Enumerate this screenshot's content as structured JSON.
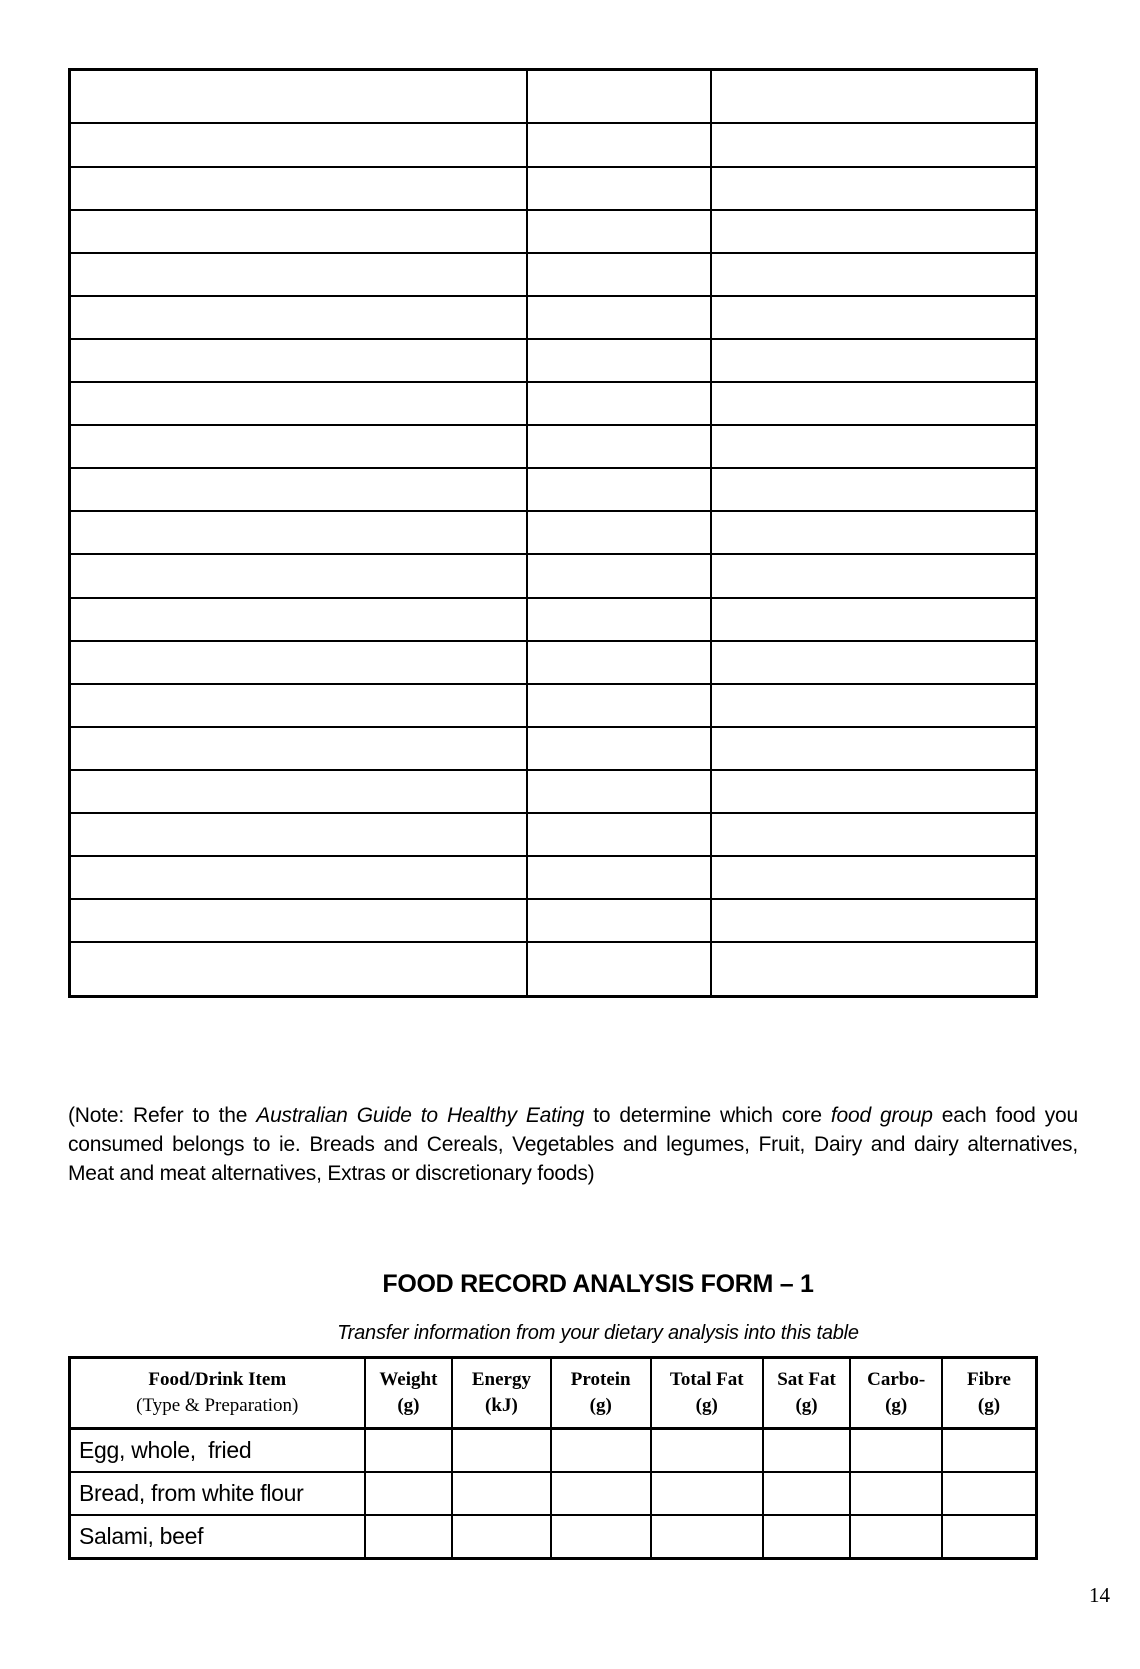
{
  "page": {
    "number": "14"
  },
  "top_table": {
    "rows": 21,
    "columns": 3
  },
  "note": {
    "prefix": "(Note: Refer to the ",
    "italic1": "Australian Guide to Healthy Eating",
    "middle": " to determine which core ",
    "italic2": "food group",
    "suffix": " each food you consumed belongs to ie. Breads and Cereals, Vegetables and legumes, Fruit, Dairy and dairy alternatives, Meat and meat alternatives, Extras or discretionary foods)"
  },
  "form": {
    "title": "FOOD RECORD ANALYSIS FORM – 1",
    "subtitle": "Transfer information from your dietary analysis into this table",
    "table": {
      "headers": [
        {
          "line1": "Food/Drink Item",
          "line2": "(Type & Preparation)"
        },
        {
          "line1": "Weight",
          "line2": "(g)"
        },
        {
          "line1": "Energy",
          "line2": "(kJ)"
        },
        {
          "line1": "Protein",
          "line2": "(g)"
        },
        {
          "line1": "Total Fat",
          "line2": "(g)"
        },
        {
          "line1": "Sat Fat",
          "line2": "(g)"
        },
        {
          "line1": "Carbo-",
          "line2": "(g)"
        },
        {
          "line1": "Fibre",
          "line2": "(g)"
        }
      ],
      "rows": [
        {
          "item": "Egg, whole,  fried"
        },
        {
          "item": "Bread, from white flour"
        },
        {
          "item": "Salami, beef"
        }
      ]
    }
  }
}
